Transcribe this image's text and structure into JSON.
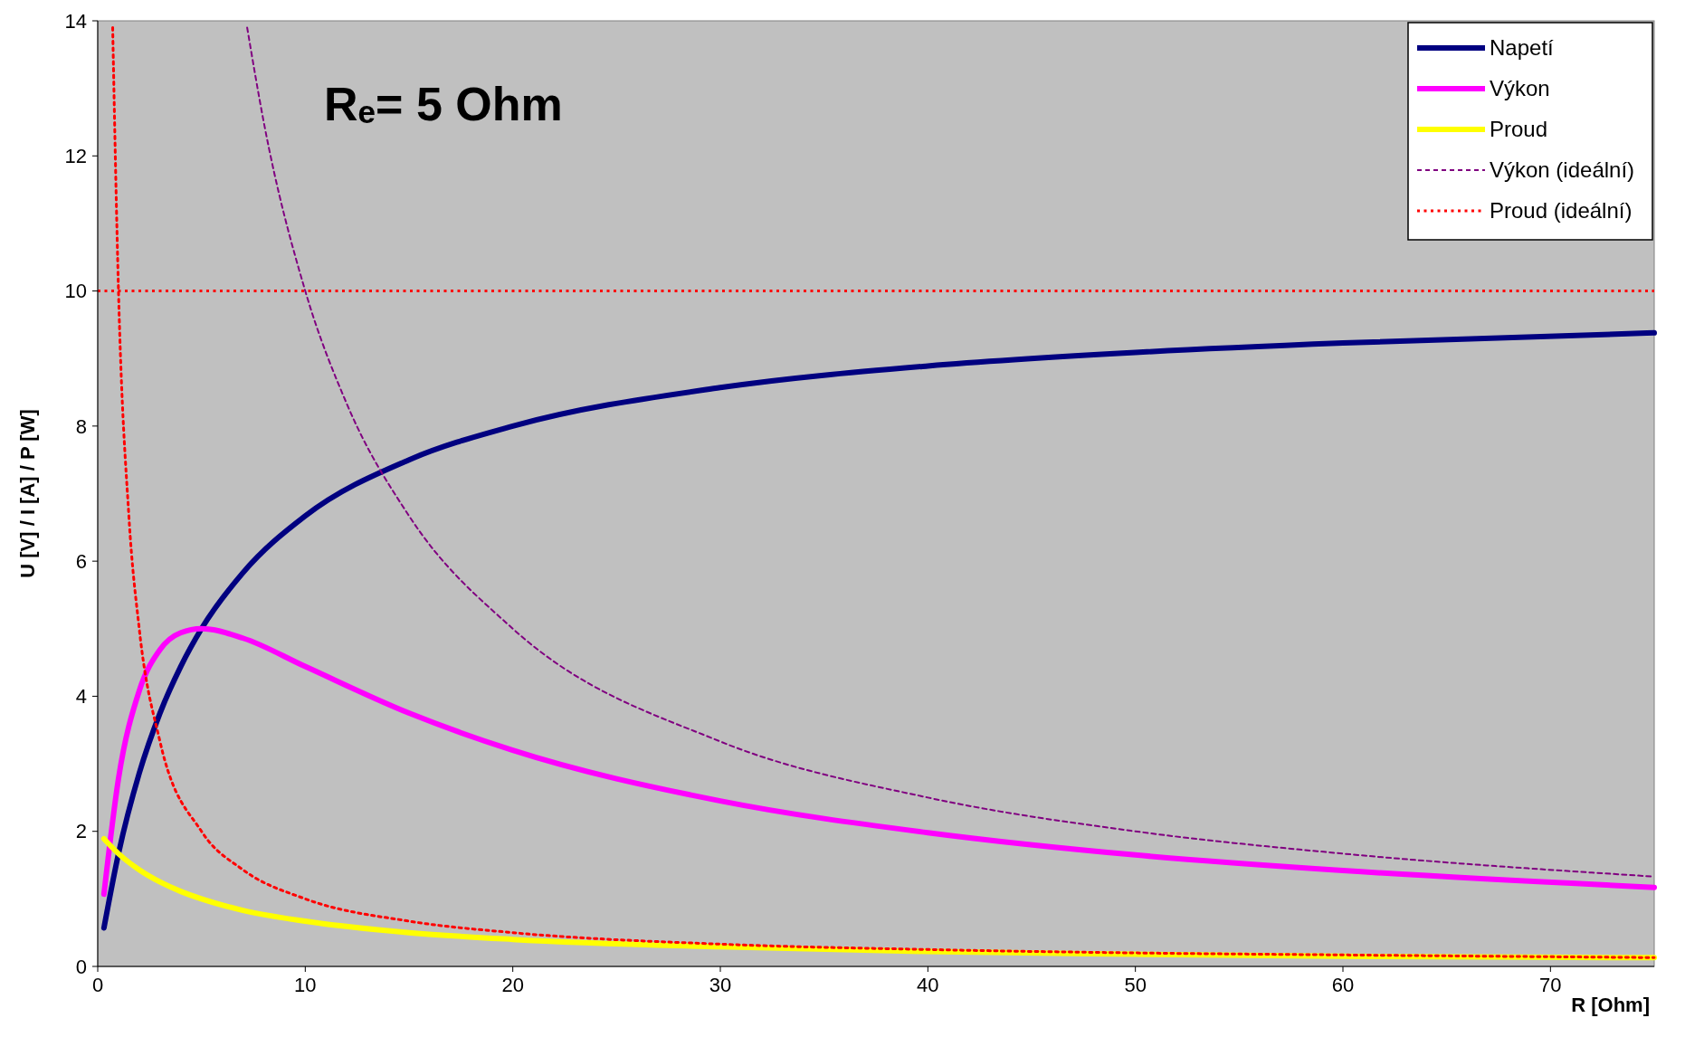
{
  "chart_data": {
    "type": "line",
    "title": "Rₑ= 5 Ohm",
    "xlabel": "R [Ohm]",
    "ylabel": "U [V] / I [A] / P [W]",
    "xlim": [
      0,
      75
    ],
    "ylim": [
      0,
      14
    ],
    "xticks": [
      0,
      10,
      20,
      30,
      40,
      50,
      60,
      70
    ],
    "yticks": [
      0,
      2,
      4,
      6,
      8,
      10,
      12,
      14
    ],
    "grid": false,
    "legend": "top right",
    "series": [
      {
        "name": "Napetí",
        "color": "#000080",
        "line_style": "solid",
        "x": [
          0.3,
          1,
          2,
          3,
          4,
          5,
          7,
          10,
          15,
          20,
          30,
          40,
          50,
          60,
          75
        ],
        "values": [
          0.57,
          1.67,
          2.86,
          3.75,
          4.44,
          5,
          5.83,
          6.67,
          7.5,
          8,
          8.57,
          8.89,
          9.09,
          9.23,
          9.38
        ]
      },
      {
        "name": "Výkon",
        "color": "#ff00ff",
        "line_style": "solid",
        "x": [
          0.3,
          1,
          2,
          3,
          4,
          5,
          7,
          10,
          15,
          20,
          30,
          40,
          50,
          60,
          75
        ],
        "values": [
          1.07,
          2.78,
          4.08,
          4.69,
          4.94,
          5,
          4.86,
          4.44,
          3.75,
          3.2,
          2.45,
          1.98,
          1.65,
          1.42,
          1.17
        ]
      },
      {
        "name": "Proud",
        "color": "#ffff00",
        "line_style": "solid",
        "x": [
          0.3,
          1,
          2,
          3,
          4,
          5,
          7,
          10,
          15,
          20,
          30,
          40,
          50,
          60,
          75
        ],
        "values": [
          1.89,
          1.67,
          1.43,
          1.25,
          1.11,
          1,
          0.83,
          0.67,
          0.5,
          0.4,
          0.29,
          0.22,
          0.18,
          0.15,
          0.13
        ]
      },
      {
        "name": "Výkon (ideální)",
        "color": "#800080",
        "line_style": "dashed",
        "x": [
          7.2,
          8,
          10,
          12,
          15,
          20,
          30,
          40,
          50,
          60,
          75
        ],
        "values": [
          13.9,
          12.5,
          10,
          8.33,
          6.67,
          5,
          3.33,
          2.5,
          2,
          1.67,
          1.33
        ]
      },
      {
        "name": "Proud (ideální)",
        "color": "#ff0000",
        "line_style": "dotted",
        "x": [
          0.72,
          1,
          1.5,
          2,
          3,
          5,
          7,
          10,
          15,
          20,
          30,
          40,
          50,
          60,
          75
        ],
        "values": [
          13.9,
          10,
          6.67,
          5,
          3.33,
          2,
          1.43,
          1,
          0.67,
          0.5,
          0.33,
          0.25,
          0.2,
          0.17,
          0.13
        ]
      }
    ],
    "ref_lines": [
      {
        "axis": "y",
        "value": 10,
        "label": null,
        "color": "#ff0000",
        "line_style": "dotted"
      }
    ]
  }
}
